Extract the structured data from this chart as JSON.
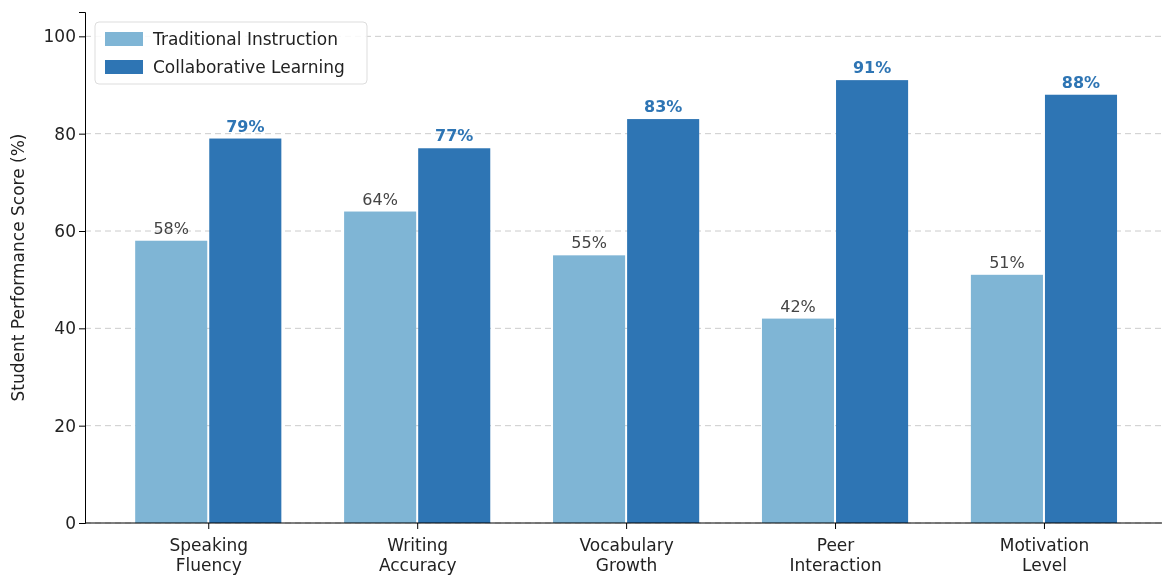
{
  "chart_data": {
    "type": "bar",
    "ylabel": "Student Performance Score (%)",
    "categories": [
      "Speaking Fluency",
      "Writing Accuracy",
      "Vocabulary Growth",
      "Peer Interaction",
      "Motivation Level"
    ],
    "series": [
      {
        "name": "Traditional Instruction",
        "color": "#7fb5d5",
        "values": [
          58,
          64,
          55,
          42,
          51
        ],
        "value_labels": [
          "58%",
          "64%",
          "55%",
          "42%",
          "51%"
        ]
      },
      {
        "name": "Collaborative Learning",
        "color": "#2e75b4",
        "values": [
          79,
          77,
          83,
          91,
          88
        ],
        "value_labels": [
          "79%",
          "77%",
          "83%",
          "91%",
          "88%"
        ]
      }
    ],
    "ylim": [
      0,
      105
    ],
    "yticks": [
      0,
      20,
      40,
      60,
      80,
      100
    ],
    "grid": "y",
    "legend": "top left"
  }
}
